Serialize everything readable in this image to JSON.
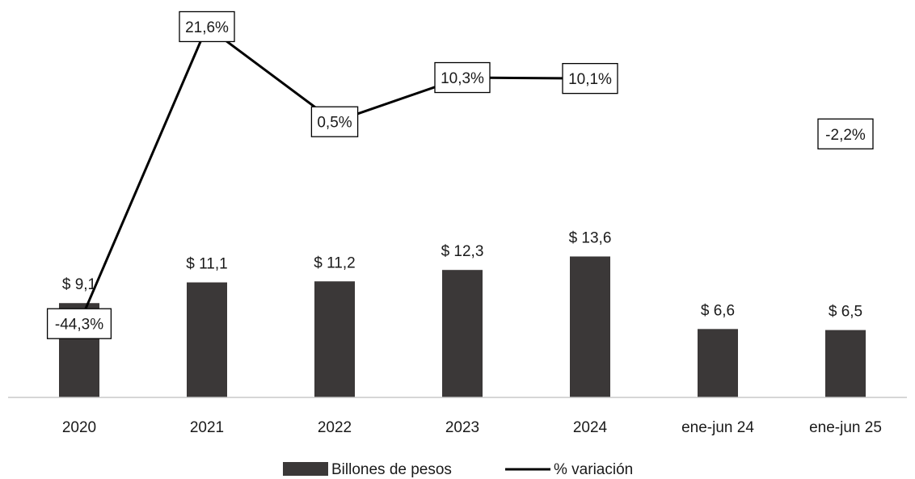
{
  "chart_data": {
    "type": "bar",
    "categories": [
      "2020",
      "2021",
      "2022",
      "2023",
      "2024",
      "ene-jun 24",
      "ene-jun 25"
    ],
    "series": [
      {
        "name": "Billones de pesos",
        "type": "bar",
        "values": [
          9.1,
          11.1,
          11.2,
          12.3,
          13.6,
          6.6,
          6.5
        ],
        "labels": [
          "$ 9,1",
          "$ 11,1",
          "$ 11,2",
          "$ 12,3",
          "$ 13,6",
          "$ 6,6",
          "$ 6,5"
        ],
        "color": "#3b3838"
      },
      {
        "name": "% variación",
        "type": "line",
        "values": [
          -44.3,
          21.6,
          0.5,
          10.3,
          10.1,
          null,
          -2.2
        ],
        "labels": [
          "-44,3%",
          "21,6%",
          "0,5%",
          "10,3%",
          "10,1%",
          "",
          "-2,2%"
        ],
        "color": "#000000"
      }
    ],
    "legend": {
      "position": "bottom",
      "items": [
        "Billones de pesos",
        "% variación"
      ]
    },
    "grid": false
  }
}
